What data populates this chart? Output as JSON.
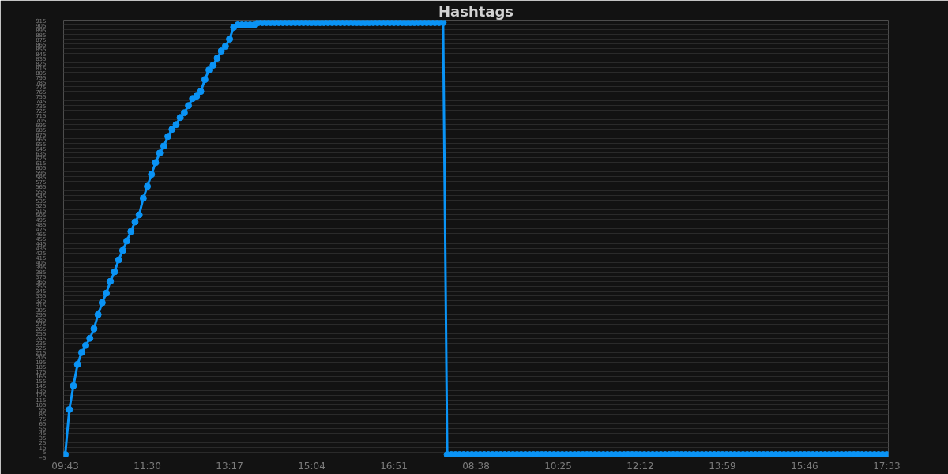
{
  "chart_data": {
    "type": "line",
    "title": "Hashtags",
    "categories": [
      "09:43",
      null,
      null,
      null,
      null,
      null,
      null,
      null,
      null,
      null,
      null,
      null,
      null,
      null,
      null,
      null,
      null,
      null,
      null,
      null,
      "11:30",
      null,
      null,
      null,
      null,
      null,
      null,
      null,
      null,
      null,
      null,
      null,
      null,
      null,
      null,
      null,
      null,
      null,
      null,
      null,
      "13:17",
      null,
      null,
      null,
      null,
      null,
      null,
      null,
      null,
      null,
      null,
      null,
      null,
      null,
      null,
      null,
      null,
      null,
      null,
      null,
      "15:04",
      null,
      null,
      null,
      null,
      null,
      null,
      null,
      null,
      null,
      null,
      null,
      null,
      null,
      null,
      null,
      null,
      null,
      null,
      null,
      "16:51",
      null,
      null,
      null,
      null,
      null,
      null,
      null,
      null,
      null,
      null,
      null,
      null,
      null,
      null,
      null,
      null,
      null,
      null,
      null,
      "08:38",
      null,
      null,
      null,
      null,
      null,
      null,
      null,
      null,
      null,
      null,
      null,
      null,
      null,
      null,
      null,
      null,
      null,
      null,
      null,
      "10:25",
      null,
      null,
      null,
      null,
      null,
      null,
      null,
      null,
      null,
      null,
      null,
      null,
      null,
      null,
      null,
      null,
      null,
      null,
      null,
      "12:12",
      null,
      null,
      null,
      null,
      null,
      null,
      null,
      null,
      null,
      null,
      null,
      null,
      null,
      null,
      null,
      null,
      null,
      null,
      null,
      "13:59",
      null,
      null,
      null,
      null,
      null,
      null,
      null,
      null,
      null,
      null,
      null,
      null,
      null,
      null,
      null,
      null,
      null,
      null,
      null,
      "15:46",
      null,
      null,
      null,
      null,
      null,
      null,
      null,
      null,
      null,
      null,
      null,
      null,
      null,
      null,
      null,
      null,
      null,
      null,
      null,
      "17:33"
    ],
    "values": [
      0,
      95,
      145,
      190,
      215,
      230,
      245,
      265,
      295,
      320,
      340,
      365,
      385,
      410,
      430,
      450,
      470,
      490,
      505,
      540,
      565,
      590,
      615,
      635,
      650,
      670,
      685,
      695,
      710,
      720,
      735,
      750,
      755,
      765,
      790,
      810,
      820,
      835,
      850,
      860,
      875,
      900,
      905,
      905,
      905,
      905,
      905,
      910,
      910,
      910,
      910,
      910,
      910,
      910,
      910,
      910,
      910,
      910,
      910,
      910,
      910,
      910,
      910,
      910,
      910,
      910,
      910,
      910,
      910,
      910,
      910,
      910,
      910,
      910,
      910,
      910,
      910,
      910,
      910,
      910,
      910,
      910,
      910,
      910,
      910,
      910,
      910,
      910,
      910,
      910,
      910,
      910,
      910,
      0,
      0,
      0,
      0,
      0,
      0,
      0,
      0,
      0,
      0,
      0,
      0,
      0,
      0,
      0,
      0,
      0,
      0,
      0,
      0,
      0,
      0,
      0,
      0,
      0,
      0,
      0,
      0,
      0,
      0,
      0,
      0,
      0,
      0,
      0,
      0,
      0,
      0,
      0,
      0,
      0,
      0,
      0,
      0,
      0,
      0,
      0,
      0,
      0,
      0,
      0,
      0,
      0,
      0,
      0,
      0,
      0,
      0,
      0,
      0,
      0,
      0,
      0,
      0,
      0,
      0,
      0,
      0,
      0,
      0,
      0,
      0,
      0,
      0,
      0,
      0,
      0,
      0,
      0,
      0,
      0,
      0,
      0,
      0,
      0,
      0,
      0,
      0,
      0,
      0,
      0,
      0,
      0,
      0,
      0,
      0,
      0,
      0,
      0,
      0,
      0,
      0,
      0,
      0,
      0,
      0,
      0,
      0
    ],
    "color": "#0a93f5",
    "marker": "circle",
    "grid": "y",
    "ylim": [
      -5,
      915
    ],
    "yticks": [
      -5,
      5,
      15,
      25,
      35,
      45,
      55,
      65,
      75,
      85,
      95,
      105,
      115,
      125,
      135,
      145,
      155,
      165,
      175,
      185,
      195,
      205,
      215,
      225,
      235,
      245,
      255,
      265,
      275,
      285,
      295,
      305,
      315,
      325,
      335,
      345,
      355,
      365,
      375,
      385,
      395,
      405,
      415,
      425,
      435,
      445,
      455,
      465,
      475,
      485,
      495,
      505,
      515,
      525,
      535,
      545,
      555,
      565,
      575,
      585,
      595,
      605,
      615,
      625,
      635,
      645,
      655,
      665,
      675,
      685,
      695,
      705,
      715,
      725,
      735,
      745,
      755,
      765,
      775,
      785,
      795,
      805,
      815,
      825,
      835,
      845,
      855,
      865,
      875,
      885,
      895,
      905,
      915
    ]
  }
}
